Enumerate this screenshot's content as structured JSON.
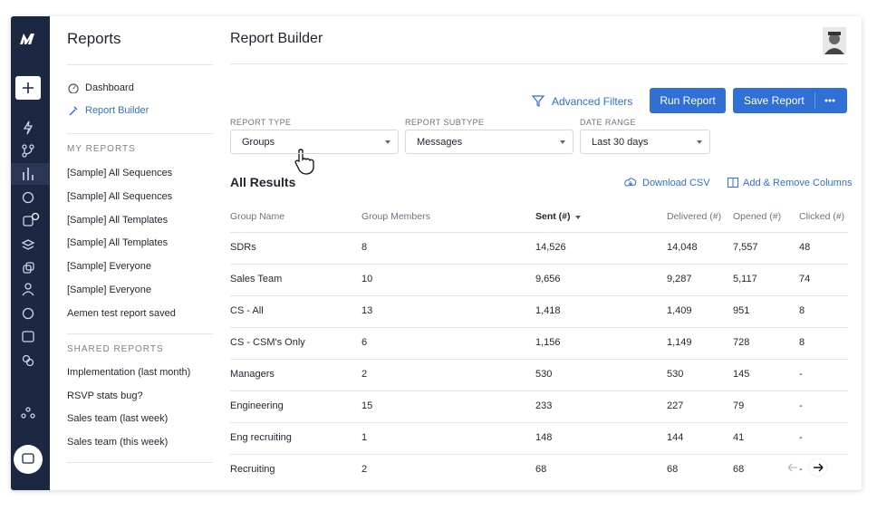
{
  "sidebar": {
    "title": "Reports",
    "nav": [
      "Dashboard",
      "Report Builder"
    ],
    "my_reports_heading": "MY REPORTS",
    "my_reports": [
      "[Sample] All Sequences",
      "[Sample] All Sequences",
      "[Sample] All Templates",
      "[Sample] All Templates",
      "[Sample] Everyone",
      "[Sample] Everyone",
      "Aemen test report saved"
    ],
    "shared_heading": "SHARED REPORTS",
    "shared_reports": [
      "Implementation (last month)",
      "RSVP stats bug?",
      "Sales team (last week)",
      "Sales team (this week)"
    ]
  },
  "header": {
    "title": "Report Builder"
  },
  "toolbar": {
    "advanced_filters": "Advanced Filters",
    "run": "Run Report",
    "save": "Save Report"
  },
  "filters": [
    {
      "label": "REPORT TYPE",
      "value": "Groups"
    },
    {
      "label": "REPORT SUBTYPE",
      "value": "Messages"
    },
    {
      "label": "DATE RANGE",
      "value": "Last 30 days"
    }
  ],
  "results": {
    "title": "All Results",
    "download": "Download CSV",
    "columns_action": "Add & Remove Columns",
    "columns": [
      "Group Name",
      "Group Members",
      "Sent (#)",
      "Delivered (#)",
      "Opened (#)",
      "Clicked (#)"
    ],
    "rows": [
      [
        "SDRs",
        "8",
        "14,526",
        "14,048",
        "7,557",
        "48"
      ],
      [
        "Sales Team",
        "10",
        "9,656",
        "9,287",
        "5,117",
        "74"
      ],
      [
        "CS - All",
        "13",
        "1,418",
        "1,409",
        "951",
        "8"
      ],
      [
        "CS - CSM's Only",
        "6",
        "1,156",
        "1,149",
        "728",
        "8"
      ],
      [
        "Managers",
        "2",
        "530",
        "530",
        "145",
        "-"
      ],
      [
        "Engineering",
        "15",
        "233",
        "227",
        "79",
        "-"
      ],
      [
        "Eng recruiting",
        "1",
        "148",
        "144",
        "41",
        "-"
      ],
      [
        "Recruiting",
        "2",
        "68",
        "68",
        "68",
        "-"
      ]
    ]
  }
}
